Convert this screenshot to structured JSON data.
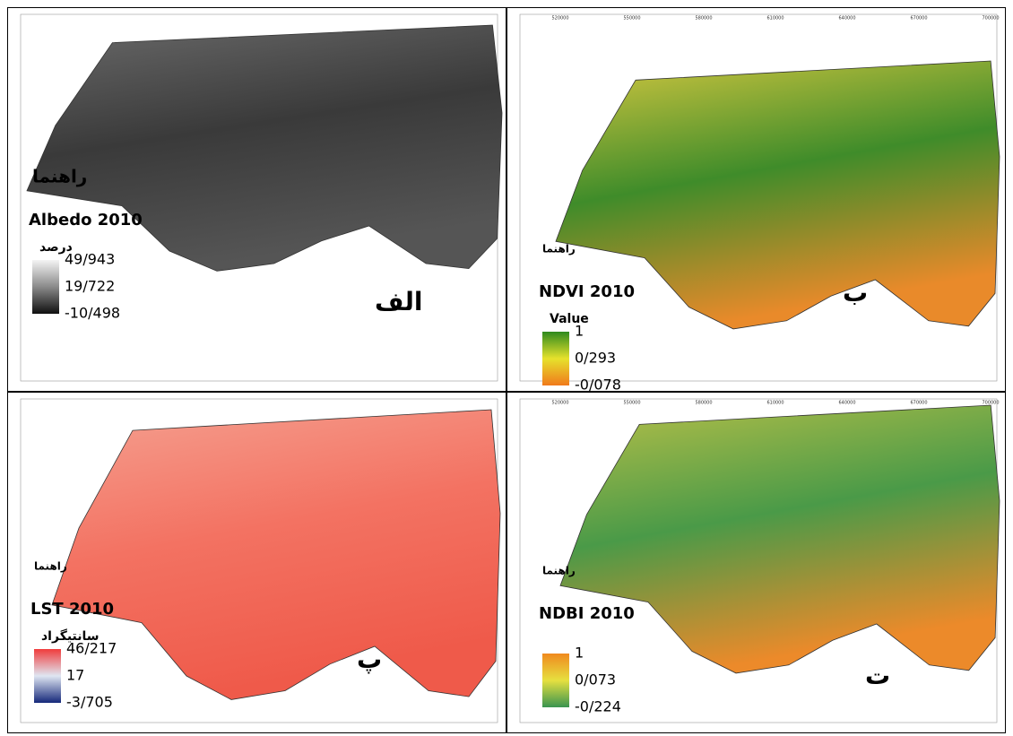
{
  "panels": [
    {
      "letter": "الف",
      "legend_heading": "راهنما",
      "title": "Albedo 2010",
      "unit": "درصد",
      "legend_labels": [
        "49/943",
        "19/722",
        "-10/498"
      ],
      "colors": [
        "#f4f4f4",
        "#8a8a8a",
        "#101010"
      ],
      "map_colors": [
        "#6a6a6a",
        "#3a3a3a",
        "#555555"
      ]
    },
    {
      "letter": "ب",
      "legend_heading": "راهنما",
      "title": "NDVI 2010",
      "unit": "Value",
      "legend_labels": [
        "1",
        "0/293",
        "-0/078"
      ],
      "colors": [
        "#2f8a1e",
        "#e6e22c",
        "#f07a1c"
      ],
      "map_colors": [
        "#d6c840",
        "#3f8c2a",
        "#e98a2a"
      ]
    },
    {
      "letter": "پ",
      "legend_heading": "راهنما",
      "title": "LST 2010",
      "unit": "سانتیگراد",
      "legend_labels": [
        "46/217",
        "17",
        "-3/705"
      ],
      "colors": [
        "#f03c3c",
        "#dfe6f2",
        "#15287a"
      ],
      "map_colors": [
        "#f5a090",
        "#f37262",
        "#ef5a4a"
      ]
    },
    {
      "letter": "ت",
      "legend_heading": "راهنما",
      "title": "NDBI 2010",
      "unit": "",
      "legend_labels": [
        "1",
        "0/073",
        "-0/224"
      ],
      "colors": [
        "#f08a1e",
        "#e6e040",
        "#3a9450"
      ],
      "map_colors": [
        "#b8c048",
        "#4a9a48",
        "#ec8a2a"
      ]
    }
  ],
  "x_axis_labels": [
    "520000",
    "550000",
    "580000",
    "610000",
    "640000",
    "670000",
    "700000"
  ]
}
